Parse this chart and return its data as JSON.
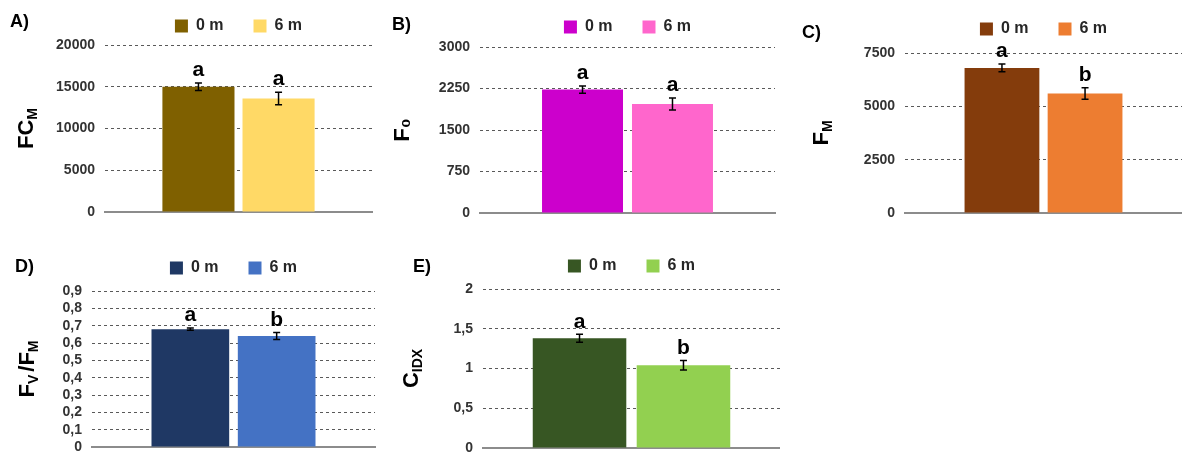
{
  "chart_data": [
    {
      "type": "bar",
      "title": "A)",
      "ylabel": "FC$_{M}$",
      "categories": [
        null
      ],
      "series": [
        {
          "name": "0 m",
          "color": "#7f6000",
          "values": [
            15000
          ],
          "errors": [
            450
          ]
        },
        {
          "name": "6 m",
          "color": "#ffd966",
          "values": [
            13600
          ],
          "errors": [
            750
          ]
        }
      ],
      "ylim": [
        0,
        20000
      ],
      "yticks": [
        0,
        5000,
        10000,
        15000,
        20000
      ],
      "grid": "y",
      "legend": "top",
      "annotations": [
        "a",
        "a"
      ]
    },
    {
      "type": "bar",
      "title": "B)",
      "ylabel": "F₀",
      "categories": [
        null
      ],
      "series": [
        {
          "name": "0 m",
          "color": "#cc00cc",
          "values": [
            2230
          ],
          "errors": [
            65
          ]
        },
        {
          "name": "6 m",
          "color": "#ff66cc",
          "values": [
            1970
          ],
          "errors": [
            110
          ]
        }
      ],
      "ylim": [
        0,
        3000
      ],
      "yticks": [
        0,
        750,
        1500,
        2250,
        3000
      ],
      "grid": "y",
      "legend": "top",
      "annotations": [
        "a",
        "a"
      ]
    },
    {
      "type": "bar",
      "title": "C)",
      "ylabel": "F$_{M}$",
      "categories": [
        null
      ],
      "series": [
        {
          "name": "0 m",
          "color": "#843c0c",
          "values": [
            6800
          ],
          "errors": [
            180
          ]
        },
        {
          "name": "6 m",
          "color": "#ed7d31",
          "values": [
            5600
          ],
          "errors": [
            270
          ]
        }
      ],
      "ylim": [
        0,
        7500
      ],
      "yticks": [
        0,
        2500,
        5000,
        7500
      ],
      "grid": "y",
      "legend": "top",
      "annotations": [
        "a",
        "b"
      ]
    },
    {
      "type": "bar",
      "title": "D)",
      "ylabel": "F$_{V}$/F$_{M}$",
      "categories": [
        null
      ],
      "series": [
        {
          "name": "0 m",
          "color": "#1f3864",
          "values": [
            0.68
          ],
          "errors": [
            0.007
          ]
        },
        {
          "name": "6 m",
          "color": "#4472c4",
          "values": [
            0.64
          ],
          "errors": [
            0.02
          ]
        }
      ],
      "ylim": [
        0,
        0.9
      ],
      "yticks": [
        0,
        {
          "value": 0.1,
          "label": "0,1"
        },
        {
          "value": 0.2,
          "label": "0,2"
        },
        {
          "value": 0.3,
          "label": "0,3"
        },
        {
          "value": 0.4,
          "label": "0,4"
        },
        {
          "value": 0.5,
          "label": "0,5"
        },
        {
          "value": 0.6,
          "label": "0,6"
        },
        {
          "value": 0.7,
          "label": "0,7"
        },
        {
          "value": 0.8,
          "label": "0,8"
        },
        {
          "value": 0.9,
          "label": "0,9"
        }
      ],
      "grid": "y",
      "legend": "top",
      "annotations": [
        "a",
        "b"
      ]
    },
    {
      "type": "bar",
      "title": "E)",
      "ylabel": "C$_{IDX}$",
      "categories": [
        null
      ],
      "series": [
        {
          "name": "0 m",
          "color": "#375623",
          "values": [
            1.38
          ],
          "errors": [
            0.05
          ]
        },
        {
          "name": "6 m",
          "color": "#92d050",
          "values": [
            1.04
          ],
          "errors": [
            0.06
          ]
        }
      ],
      "ylim": [
        0,
        2
      ],
      "yticks": [
        0,
        {
          "value": 0.5,
          "label": "0,5"
        },
        1,
        {
          "value": 1.5,
          "label": "1,5"
        },
        2
      ],
      "grid": "y",
      "legend": "top",
      "annotations": [
        "a",
        "b"
      ]
    }
  ]
}
